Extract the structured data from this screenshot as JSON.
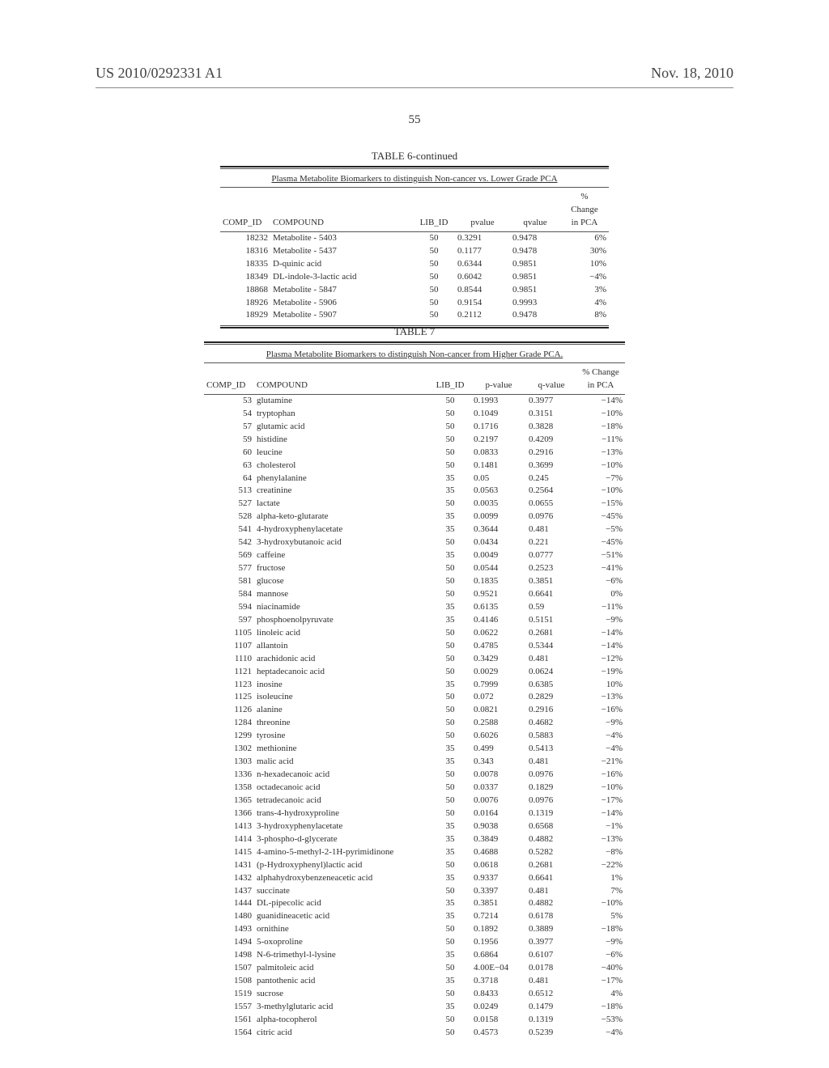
{
  "header": {
    "patent_no": "US 2010/0292331 A1",
    "date": "Nov. 18, 2010",
    "page_num": "55"
  },
  "table6": {
    "title": "TABLE 6-continued",
    "subtitle": "Plasma Metabolite Biomarkers to distinguish Non-cancer vs. Lower Grade PCA",
    "head": [
      "COMP_ID",
      "COMPOUND",
      "LIB_ID",
      "pvalue",
      "qvalue",
      "% Change in PCA"
    ],
    "rows": [
      [
        "18232",
        "Metabolite - 5403",
        "50",
        "0.3291",
        "0.9478",
        "6%"
      ],
      [
        "18316",
        "Metabolite - 5437",
        "50",
        "0.1177",
        "0.9478",
        "30%"
      ],
      [
        "18335",
        "D-quinic acid",
        "50",
        "0.6344",
        "0.9851",
        "10%"
      ],
      [
        "18349",
        "DL-indole-3-lactic acid",
        "50",
        "0.6042",
        "0.9851",
        "−4%"
      ],
      [
        "18868",
        "Metabolite - 5847",
        "50",
        "0.8544",
        "0.9851",
        "3%"
      ],
      [
        "18926",
        "Metabolite - 5906",
        "50",
        "0.9154",
        "0.9993",
        "4%"
      ],
      [
        "18929",
        "Metabolite - 5907",
        "50",
        "0.2112",
        "0.9478",
        "8%"
      ]
    ]
  },
  "table7": {
    "title": "TABLE 7",
    "subtitle": "Plasma Metabolite Biomarkers to distinguish Non-cancer from Higher Grade PCA.",
    "head": [
      "COMP_ID",
      "COMPOUND",
      "LIB_ID",
      "p-value",
      "q-value",
      "% Change in PCA"
    ],
    "rows": [
      [
        "53",
        "glutamine",
        "50",
        "0.1993",
        "0.3977",
        "−14%"
      ],
      [
        "54",
        "tryptophan",
        "50",
        "0.1049",
        "0.3151",
        "−10%"
      ],
      [
        "57",
        "glutamic acid",
        "50",
        "0.1716",
        "0.3828",
        "−18%"
      ],
      [
        "59",
        "histidine",
        "50",
        "0.2197",
        "0.4209",
        "−11%"
      ],
      [
        "60",
        "leucine",
        "50",
        "0.0833",
        "0.2916",
        "−13%"
      ],
      [
        "63",
        "cholesterol",
        "50",
        "0.1481",
        "0.3699",
        "−10%"
      ],
      [
        "64",
        "phenylalanine",
        "35",
        "0.05",
        "0.245",
        "−7%"
      ],
      [
        "513",
        "creatinine",
        "35",
        "0.0563",
        "0.2564",
        "−10%"
      ],
      [
        "527",
        "lactate",
        "50",
        "0.0035",
        "0.0655",
        "−15%"
      ],
      [
        "528",
        "alpha-keto-glutarate",
        "35",
        "0.0099",
        "0.0976",
        "−45%"
      ],
      [
        "541",
        "4-hydroxyphenylacetate",
        "35",
        "0.3644",
        "0.481",
        "−5%"
      ],
      [
        "542",
        "3-hydroxybutanoic acid",
        "50",
        "0.0434",
        "0.221",
        "−45%"
      ],
      [
        "569",
        "caffeine",
        "35",
        "0.0049",
        "0.0777",
        "−51%"
      ],
      [
        "577",
        "fructose",
        "50",
        "0.0544",
        "0.2523",
        "−41%"
      ],
      [
        "581",
        "glucose",
        "50",
        "0.1835",
        "0.3851",
        "−6%"
      ],
      [
        "584",
        "mannose",
        "50",
        "0.9521",
        "0.6641",
        "0%"
      ],
      [
        "594",
        "niacinamide",
        "35",
        "0.6135",
        "0.59",
        "−11%"
      ],
      [
        "597",
        "phosphoenolpyruvate",
        "35",
        "0.4146",
        "0.5151",
        "−9%"
      ],
      [
        "1105",
        "linoleic acid",
        "50",
        "0.0622",
        "0.2681",
        "−14%"
      ],
      [
        "1107",
        "allantoin",
        "50",
        "0.4785",
        "0.5344",
        "−14%"
      ],
      [
        "1110",
        "arachidonic acid",
        "50",
        "0.3429",
        "0.481",
        "−12%"
      ],
      [
        "1121",
        "heptadecanoic acid",
        "50",
        "0.0029",
        "0.0624",
        "−19%"
      ],
      [
        "1123",
        "inosine",
        "35",
        "0.7999",
        "0.6385",
        "10%"
      ],
      [
        "1125",
        "isoleucine",
        "50",
        "0.072",
        "0.2829",
        "−13%"
      ],
      [
        "1126",
        "alanine",
        "50",
        "0.0821",
        "0.2916",
        "−16%"
      ],
      [
        "1284",
        "threonine",
        "50",
        "0.2588",
        "0.4682",
        "−9%"
      ],
      [
        "1299",
        "tyrosine",
        "50",
        "0.6026",
        "0.5883",
        "−4%"
      ],
      [
        "1302",
        "methionine",
        "35",
        "0.499",
        "0.5413",
        "−4%"
      ],
      [
        "1303",
        "malic acid",
        "35",
        "0.343",
        "0.481",
        "−21%"
      ],
      [
        "1336",
        "n-hexadecanoic acid",
        "50",
        "0.0078",
        "0.0976",
        "−16%"
      ],
      [
        "1358",
        "octadecanoic acid",
        "50",
        "0.0337",
        "0.1829",
        "−10%"
      ],
      [
        "1365",
        "tetradecanoic acid",
        "50",
        "0.0076",
        "0.0976",
        "−17%"
      ],
      [
        "1366",
        "trans-4-hydroxyproline",
        "50",
        "0.0164",
        "0.1319",
        "−14%"
      ],
      [
        "1413",
        "3-hydroxyphenylacetate",
        "35",
        "0.9038",
        "0.6568",
        "−1%"
      ],
      [
        "1414",
        "3-phospho-d-glycerate",
        "35",
        "0.3849",
        "0.4882",
        "−13%"
      ],
      [
        "1415",
        "4-amino-5-methyl-2-1H-pyrimidinone",
        "35",
        "0.4688",
        "0.5282",
        "−8%"
      ],
      [
        "1431",
        "(p-Hydroxyphenyl)lactic acid",
        "50",
        "0.0618",
        "0.2681",
        "−22%"
      ],
      [
        "1432",
        "alphahydroxybenzeneacetic acid",
        "35",
        "0.9337",
        "0.6641",
        "1%"
      ],
      [
        "1437",
        "succinate",
        "50",
        "0.3397",
        "0.481",
        "7%"
      ],
      [
        "1444",
        "DL-pipecolic acid",
        "35",
        "0.3851",
        "0.4882",
        "−10%"
      ],
      [
        "1480",
        "guanidineacetic acid",
        "35",
        "0.7214",
        "0.6178",
        "5%"
      ],
      [
        "1493",
        "ornithine",
        "50",
        "0.1892",
        "0.3889",
        "−18%"
      ],
      [
        "1494",
        "5-oxoproline",
        "50",
        "0.1956",
        "0.3977",
        "−9%"
      ],
      [
        "1498",
        "N-6-trimethyl-l-lysine",
        "35",
        "0.6864",
        "0.6107",
        "−6%"
      ],
      [
        "1507",
        "palmitoleic acid",
        "50",
        "4.00E−04",
        "0.0178",
        "−40%"
      ],
      [
        "1508",
        "pantothenic acid",
        "35",
        "0.3718",
        "0.481",
        "−17%"
      ],
      [
        "1519",
        "sucrose",
        "50",
        "0.8433",
        "0.6512",
        "4%"
      ],
      [
        "1557",
        "3-methylglutaric acid",
        "35",
        "0.0249",
        "0.1479",
        "−18%"
      ],
      [
        "1561",
        "alpha-tocopherol",
        "50",
        "0.0158",
        "0.1319",
        "−53%"
      ],
      [
        "1564",
        "citric acid",
        "50",
        "0.4573",
        "0.5239",
        "−4%"
      ]
    ]
  }
}
